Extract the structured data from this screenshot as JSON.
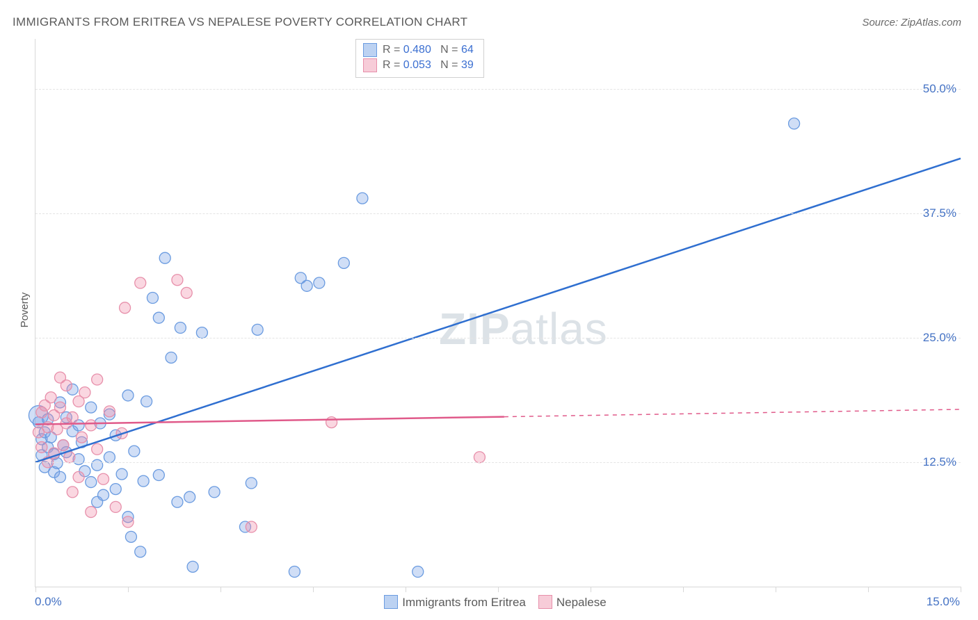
{
  "title": "IMMIGRANTS FROM ERITREA VS NEPALESE POVERTY CORRELATION CHART",
  "source": "Source: ZipAtlas.com",
  "watermark": "ZIPatlas",
  "ylabel": "Poverty",
  "chart": {
    "type": "scatter",
    "xlim": [
      0,
      15
    ],
    "ylim": [
      0,
      55
    ],
    "x_left_label": "0.0%",
    "x_right_label": "15.0%",
    "ytick_values": [
      12.5,
      25.0,
      37.5,
      50.0
    ],
    "ytick_labels": [
      "12.5%",
      "25.0%",
      "37.5%",
      "50.0%"
    ],
    "xtick_values": [
      0,
      1.5,
      3.0,
      4.5,
      6.0,
      7.5,
      9.0,
      10.5,
      12.0,
      13.5,
      15.0
    ],
    "background_color": "#ffffff",
    "grid_color": "#e4e4e4",
    "axis_color": "#d8d8d8",
    "tick_label_color": "#4472c4",
    "series": [
      {
        "name": "Immigrants from Eritrea",
        "color_fill": "rgba(120,160,230,0.35)",
        "color_stroke": "#6a9be0",
        "trend_color": "#2f6fd0",
        "legend_swatch_fill": "#bcd2f2",
        "legend_swatch_border": "#6a9be0",
        "R": "0.480",
        "N": "64",
        "trend": {
          "x1": 0,
          "y1": 12.5,
          "x2": 15,
          "y2": 43.0
        },
        "marker_r": 8,
        "points": [
          [
            0.05,
            16.5
          ],
          [
            0.05,
            17.2,
            14
          ],
          [
            0.1,
            14.8
          ],
          [
            0.1,
            13.2
          ],
          [
            0.15,
            12.0
          ],
          [
            0.15,
            15.5
          ],
          [
            0.2,
            16.8
          ],
          [
            0.2,
            14.0
          ],
          [
            0.25,
            15.0
          ],
          [
            0.3,
            11.5
          ],
          [
            0.3,
            13.3
          ],
          [
            0.35,
            12.4
          ],
          [
            0.4,
            18.5
          ],
          [
            0.4,
            11.0
          ],
          [
            0.45,
            14.2
          ],
          [
            0.5,
            17.0
          ],
          [
            0.5,
            13.5
          ],
          [
            0.6,
            15.6
          ],
          [
            0.6,
            19.8
          ],
          [
            0.7,
            16.2
          ],
          [
            0.7,
            12.8
          ],
          [
            0.75,
            14.5
          ],
          [
            0.8,
            11.6
          ],
          [
            0.9,
            10.5
          ],
          [
            0.9,
            18.0
          ],
          [
            1.0,
            12.2
          ],
          [
            1.0,
            8.5
          ],
          [
            1.05,
            16.4
          ],
          [
            1.1,
            9.2
          ],
          [
            1.2,
            13.0
          ],
          [
            1.2,
            17.3
          ],
          [
            1.3,
            9.8
          ],
          [
            1.3,
            15.2
          ],
          [
            1.4,
            11.3
          ],
          [
            1.5,
            19.2
          ],
          [
            1.5,
            7.0
          ],
          [
            1.55,
            5.0
          ],
          [
            1.6,
            13.6
          ],
          [
            1.7,
            3.5
          ],
          [
            1.75,
            10.6
          ],
          [
            1.8,
            18.6
          ],
          [
            1.9,
            29.0
          ],
          [
            2.0,
            27.0
          ],
          [
            2.0,
            11.2
          ],
          [
            2.1,
            33.0
          ],
          [
            2.2,
            23.0
          ],
          [
            2.3,
            8.5
          ],
          [
            2.35,
            26.0
          ],
          [
            2.5,
            9.0
          ],
          [
            2.55,
            2.0
          ],
          [
            2.7,
            25.5
          ],
          [
            2.9,
            9.5
          ],
          [
            3.4,
            6.0
          ],
          [
            3.5,
            10.4
          ],
          [
            3.6,
            25.8
          ],
          [
            4.2,
            1.5
          ],
          [
            4.3,
            31.0
          ],
          [
            4.4,
            30.2
          ],
          [
            4.6,
            30.5
          ],
          [
            5.0,
            32.5
          ],
          [
            5.3,
            39.0
          ],
          [
            6.2,
            1.5
          ],
          [
            12.3,
            46.5
          ]
        ]
      },
      {
        "name": "Nepalese",
        "color_fill": "rgba(240,140,170,0.35)",
        "color_stroke": "#e78faa",
        "trend_color": "#e05a8a",
        "legend_swatch_fill": "#f7ccd8",
        "legend_swatch_border": "#e78faa",
        "R": "0.053",
        "N": "39",
        "trend": {
          "x1": 0,
          "y1": 16.3,
          "x2": 15,
          "y2": 17.8,
          "solid_until_x": 7.6
        },
        "marker_r": 8,
        "points": [
          [
            0.05,
            15.5
          ],
          [
            0.1,
            17.5
          ],
          [
            0.1,
            14.0
          ],
          [
            0.15,
            18.2
          ],
          [
            0.2,
            16.0
          ],
          [
            0.2,
            12.5
          ],
          [
            0.25,
            19.0
          ],
          [
            0.3,
            17.2
          ],
          [
            0.3,
            13.4
          ],
          [
            0.35,
            15.8
          ],
          [
            0.4,
            21.0
          ],
          [
            0.4,
            18.0
          ],
          [
            0.45,
            14.2
          ],
          [
            0.5,
            16.4
          ],
          [
            0.5,
            20.2
          ],
          [
            0.55,
            13.0
          ],
          [
            0.6,
            17.0
          ],
          [
            0.6,
            9.5
          ],
          [
            0.7,
            18.6
          ],
          [
            0.7,
            11.0
          ],
          [
            0.75,
            15.0
          ],
          [
            0.8,
            19.5
          ],
          [
            0.9,
            7.5
          ],
          [
            0.9,
            16.2
          ],
          [
            1.0,
            20.8
          ],
          [
            1.0,
            13.8
          ],
          [
            1.1,
            10.8
          ],
          [
            1.2,
            17.6
          ],
          [
            1.3,
            8.0
          ],
          [
            1.4,
            15.4
          ],
          [
            1.45,
            28.0
          ],
          [
            1.5,
            6.5
          ],
          [
            1.7,
            30.5
          ],
          [
            2.3,
            30.8
          ],
          [
            2.45,
            29.5
          ],
          [
            3.5,
            6.0
          ],
          [
            4.8,
            16.5
          ],
          [
            7.2,
            13.0
          ]
        ]
      }
    ],
    "bottom_legend": [
      {
        "label": "Immigrants from Eritrea",
        "fill": "#bcd2f2",
        "border": "#6a9be0"
      },
      {
        "label": "Nepalese",
        "fill": "#f7ccd8",
        "border": "#e78faa"
      }
    ]
  }
}
